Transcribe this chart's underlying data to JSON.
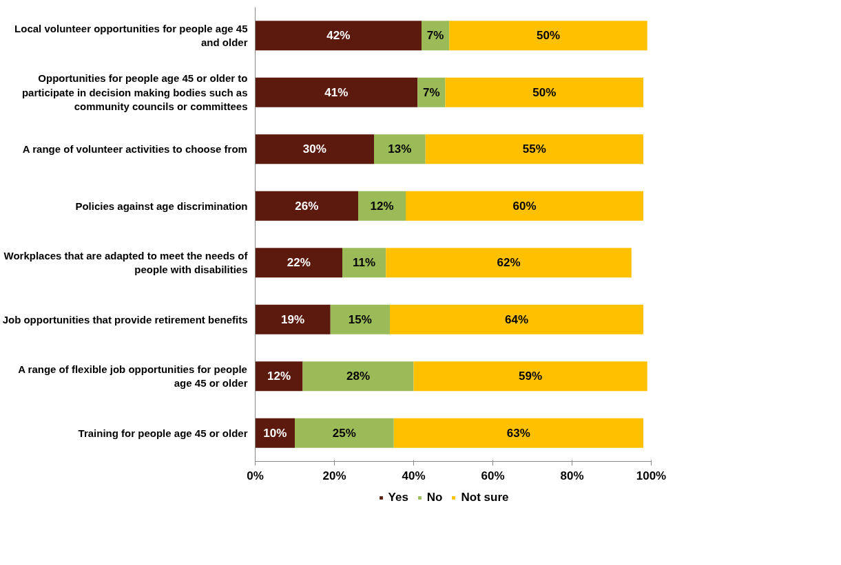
{
  "chart_data": {
    "type": "bar",
    "orientation": "horizontal",
    "stacked": true,
    "categories": [
      "Local volunteer opportunities for people age 45 and older",
      "Opportunities for people age 45 or older to participate in decision making bodies such as community councils or committees",
      "A range of volunteer activities to choose from",
      "Policies against age discrimination",
      "Workplaces that are adapted to meet the needs of people with disabilities",
      "Job opportunities that provide retirement benefits",
      "A range of flexible job opportunities for people age 45 or older",
      "Training for people age 45 or older"
    ],
    "series": [
      {
        "name": "Yes",
        "color": "#5c1a0f",
        "values": [
          42,
          41,
          30,
          26,
          22,
          19,
          12,
          10
        ],
        "value_labels": [
          "42%",
          "41%",
          "30%",
          "26%",
          "22%",
          "19%",
          "12%",
          "10%"
        ]
      },
      {
        "name": "No",
        "color": "#9bbb59",
        "values": [
          7,
          7,
          13,
          12,
          11,
          15,
          28,
          25
        ],
        "value_labels": [
          "7%",
          "7%",
          "13%",
          "12%",
          "11%",
          "15%",
          "28%",
          "25%"
        ]
      },
      {
        "name": "Not sure",
        "color": "#ffc000",
        "values": [
          50,
          50,
          55,
          60,
          62,
          64,
          59,
          63
        ],
        "value_labels": [
          "50%",
          "50%",
          "55%",
          "60%",
          "62%",
          "64%",
          "59%",
          "63%"
        ]
      }
    ],
    "xlim": [
      0,
      100
    ],
    "xticks": [
      {
        "value": 0,
        "label": "0%"
      },
      {
        "value": 20,
        "label": "20%"
      },
      {
        "value": 40,
        "label": "40%"
      },
      {
        "value": 60,
        "label": "60%"
      },
      {
        "value": 80,
        "label": "80%"
      },
      {
        "value": 100,
        "label": "100%"
      }
    ],
    "grid": false,
    "legend": "bottom"
  }
}
